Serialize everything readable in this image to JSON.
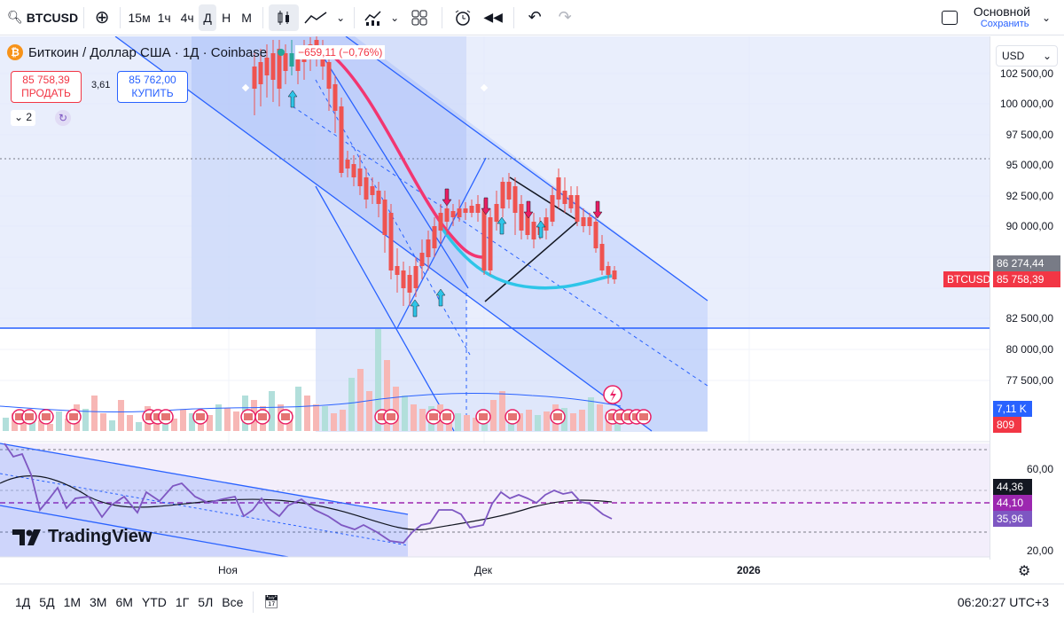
{
  "toolbar": {
    "symbol": "BTCUSD",
    "intervals": [
      "15м",
      "1ч",
      "4ч",
      "Д",
      "Н",
      "М"
    ],
    "active_interval": "Д",
    "layout_name": "Основной",
    "layout_status": "Сохранить"
  },
  "legend": {
    "title": "Биткоин / Доллар США · 1Д · Coinbase",
    "change": "−659,11 (−0,76%)",
    "sell_price": "85 758,39",
    "sell_label": "ПРОДАТЬ",
    "spread": "3,61",
    "buy_price": "85 762,00",
    "buy_label": "КУПИТЬ",
    "indicators_count": "2"
  },
  "price_axis": {
    "currency": "USD",
    "labels": [
      "102 500,00",
      "100 000,00",
      "97 500,00",
      "95 000,00",
      "92 500,00",
      "90 000,00",
      "82 500,00",
      "80 000,00",
      "77 500,00"
    ],
    "last_price_badge": "86 274,44",
    "symbol_badge": "BTCUSD",
    "current_price_badge": "85 758,39",
    "volume_ma_badge": "7,11 K",
    "volume_badge": "809"
  },
  "rsi_axis": {
    "labels": [
      "60,00",
      "20,00"
    ],
    "badges": [
      "44,36",
      "44,10",
      "35,96"
    ]
  },
  "time_axis": {
    "labels": [
      "Ноя",
      "Дек",
      "2026"
    ]
  },
  "bottom_bar": {
    "ranges": [
      "1Д",
      "5Д",
      "1М",
      "3М",
      "6М",
      "YTD",
      "1Г",
      "5Л",
      "Все"
    ],
    "clock": "06:20:27 UTC+3"
  },
  "branding": "TradingView",
  "colors": {
    "up": "#26a69a",
    "down": "#ef5350",
    "channel": "#2962ff",
    "ma_red": "#f23671",
    "ma_cyan": "#2ec5e8",
    "rsi": "#7e57c2"
  }
}
